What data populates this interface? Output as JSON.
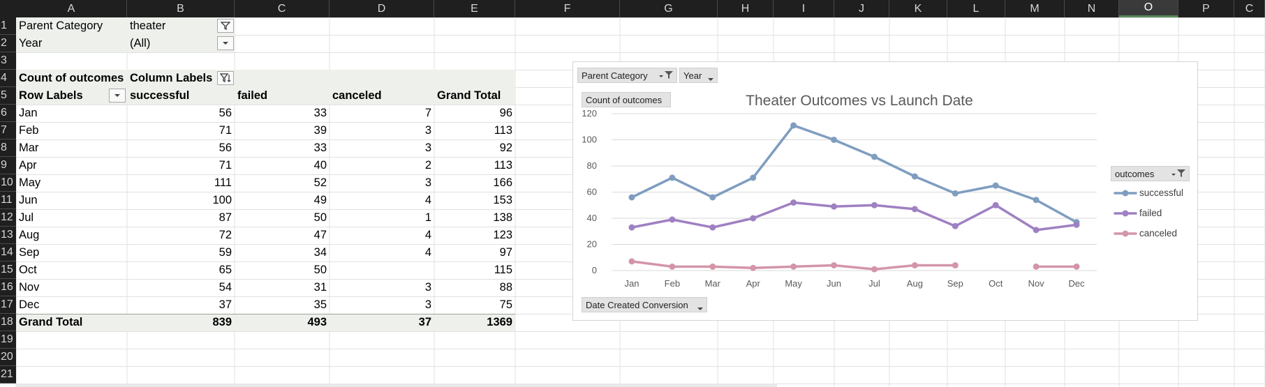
{
  "sheet": {
    "columns": [
      "A",
      "B",
      "C",
      "D",
      "E",
      "F",
      "G",
      "H",
      "I",
      "J",
      "K",
      "L",
      "M",
      "N",
      "O",
      "P",
      "C"
    ],
    "selected_column": "O",
    "rows": [
      "1",
      "2",
      "3",
      "4",
      "5",
      "6",
      "7",
      "8",
      "9",
      "10",
      "11",
      "12",
      "13",
      "14",
      "15",
      "16",
      "17",
      "18",
      "19",
      "20",
      "21"
    ]
  },
  "pivot": {
    "filter_parent_label": "Parent Category",
    "filter_parent_value": "theater",
    "filter_year_label": "Year",
    "filter_year_value": "(All)",
    "values_label": "Count of outcomes",
    "column_labels": "Column Labels",
    "row_labels": "Row Labels",
    "headers": [
      "successful",
      "failed",
      "canceled",
      "Grand Total"
    ],
    "rows": [
      {
        "label": "Jan",
        "successful": "56",
        "failed": "33",
        "canceled": "7",
        "total": "96"
      },
      {
        "label": "Feb",
        "successful": "71",
        "failed": "39",
        "canceled": "3",
        "total": "113"
      },
      {
        "label": "Mar",
        "successful": "56",
        "failed": "33",
        "canceled": "3",
        "total": "92"
      },
      {
        "label": "Apr",
        "successful": "71",
        "failed": "40",
        "canceled": "2",
        "total": "113"
      },
      {
        "label": "May",
        "successful": "111",
        "failed": "52",
        "canceled": "3",
        "total": "166"
      },
      {
        "label": "Jun",
        "successful": "100",
        "failed": "49",
        "canceled": "4",
        "total": "153"
      },
      {
        "label": "Jul",
        "successful": "87",
        "failed": "50",
        "canceled": "1",
        "total": "138"
      },
      {
        "label": "Aug",
        "successful": "72",
        "failed": "47",
        "canceled": "4",
        "total": "123"
      },
      {
        "label": "Sep",
        "successful": "59",
        "failed": "34",
        "canceled": "4",
        "total": "97"
      },
      {
        "label": "Oct",
        "successful": "65",
        "failed": "50",
        "canceled": "",
        "total": "115"
      },
      {
        "label": "Nov",
        "successful": "54",
        "failed": "31",
        "canceled": "3",
        "total": "88"
      },
      {
        "label": "Dec",
        "successful": "37",
        "failed": "35",
        "canceled": "3",
        "total": "75"
      }
    ],
    "grand_total": {
      "label": "Grand Total",
      "successful": "839",
      "failed": "493",
      "canceled": "37",
      "total": "1369"
    }
  },
  "chart_buttons": {
    "parent_category": "Parent Category",
    "year": "Year",
    "values": "Count of outcomes",
    "axis_field": "Date Created Conversion",
    "legend_field": "outcomes"
  },
  "colors": {
    "successful": "#7f9dc0",
    "failed": "#9f80c2",
    "canceled": "#d495a8",
    "gridline": "#d9d9d9"
  },
  "chart_data": {
    "type": "line",
    "title": "Theater Outcomes vs Launch Date",
    "categories": [
      "Jan",
      "Feb",
      "Mar",
      "Apr",
      "May",
      "Jun",
      "Jul",
      "Aug",
      "Sep",
      "Oct",
      "Nov",
      "Dec"
    ],
    "ylim": [
      0,
      120
    ],
    "yticks": [
      0,
      20,
      40,
      60,
      80,
      100,
      120
    ],
    "grid": true,
    "legend_position": "right",
    "series": [
      {
        "name": "successful",
        "values": [
          56,
          71,
          56,
          71,
          111,
          100,
          87,
          72,
          59,
          65,
          54,
          37
        ]
      },
      {
        "name": "failed",
        "values": [
          33,
          39,
          33,
          40,
          52,
          49,
          50,
          47,
          34,
          50,
          31,
          35
        ]
      },
      {
        "name": "canceled",
        "values": [
          7,
          3,
          3,
          2,
          3,
          4,
          1,
          4,
          4,
          null,
          3,
          3
        ]
      }
    ]
  }
}
